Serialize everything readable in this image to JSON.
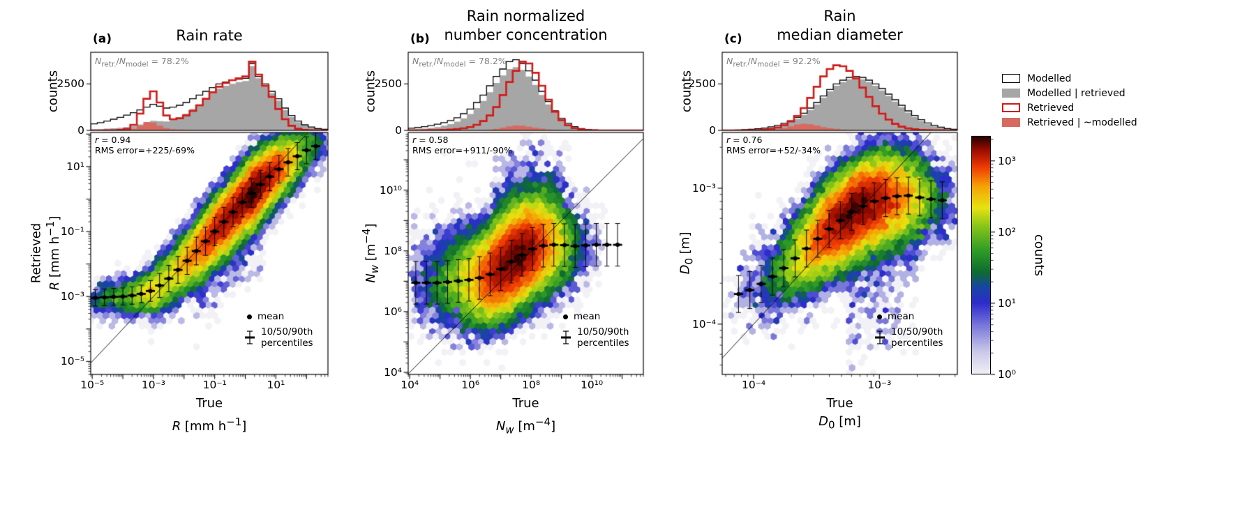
{
  "figure": {
    "background": "#ffffff"
  },
  "legend": {
    "items": [
      {
        "label": "Modelled",
        "swatch": "outline-black"
      },
      {
        "label": "Modelled | retrieved",
        "swatch": "fill-gray"
      },
      {
        "label": "Retrieved",
        "swatch": "outline-red"
      },
      {
        "label": "Retrieved | ~modelled",
        "swatch": "fill-salmon"
      }
    ]
  },
  "colorbar": {
    "label": "counts",
    "ticks": [
      "10⁰",
      "10¹",
      "10²",
      "10³"
    ],
    "tick_logs": [
      0,
      1,
      2,
      3
    ],
    "log_range": [
      0,
      3.35
    ]
  },
  "chart_data": {
    "type": "hexbin+histogram",
    "shared": {
      "counts_label": "counts",
      "true_label": "True"
    },
    "inner_legend": {
      "mean_label": "mean",
      "pct_label": "10/50/90th\npercentiles"
    },
    "colors": {
      "modelled": "#000000",
      "modelled_retrieved": "#a6a6a6",
      "retrieved": "#d11a17",
      "retrieved_not_modelled": "#d66a60",
      "axis": "#000000"
    },
    "colormap_stops": [
      [
        0.0,
        "#f2f1f5"
      ],
      [
        0.1,
        "#c8c7e8"
      ],
      [
        0.2,
        "#7e7cdb"
      ],
      [
        0.3,
        "#2d2ccd"
      ],
      [
        0.37,
        "#1747a0"
      ],
      [
        0.43,
        "#0e6b30"
      ],
      [
        0.52,
        "#2f9b26"
      ],
      [
        0.62,
        "#85c41a"
      ],
      [
        0.7,
        "#e6e310"
      ],
      [
        0.79,
        "#f6a206"
      ],
      [
        0.87,
        "#ef3b04"
      ],
      [
        0.94,
        "#a00d00"
      ],
      [
        1.0,
        "#250000"
      ]
    ],
    "panels": [
      {
        "letter": "(a)",
        "title": "Rain rate",
        "ratio_html": "<i>N</i><sub>retr.</sub>/<i>N</i><sub>model</sub> = 78.2%",
        "r_html": "<i>r</i> = 0.94",
        "rms_text": "RMS error=+225/-69%",
        "xlabel_line2_html": "<i>R</i> [mm h<sup>−1</sup>]",
        "ylabel_line1": "Retrieved",
        "ylabel_line2_html": "<i>R</i> [mm h<sup>−1</sup>]",
        "hist_yticks": [
          0,
          2500
        ],
        "hist_ymax": 4200,
        "x_log_range": [
          -5.05,
          2.7
        ],
        "y_log_range": [
          -5.4,
          2.05
        ],
        "x_ticks": [
          {
            "log": -5,
            "label": "10⁻⁵"
          },
          {
            "log": -3,
            "label": "10⁻³"
          },
          {
            "log": -1,
            "label": "10⁻¹"
          },
          {
            "log": 1,
            "label": "10¹"
          }
        ],
        "y_ticks": [
          {
            "log": 1,
            "label": "10¹"
          },
          {
            "log": -1,
            "label": "10⁻¹"
          },
          {
            "log": -3,
            "label": "10⁻³"
          },
          {
            "log": -5,
            "label": "10⁻⁵"
          }
        ],
        "hist_bins": {
          "n": 36,
          "modelled": [
            350,
            420,
            500,
            600,
            700,
            820,
            950,
            1100,
            1250,
            1400,
            1300,
            1200,
            1250,
            1350,
            1500,
            1700,
            1900,
            2100,
            2300,
            2500,
            2600,
            2700,
            2750,
            2800,
            3600,
            2900,
            2500,
            2100,
            1700,
            1200,
            800,
            500,
            300,
            180,
            100,
            60
          ],
          "modelled_retrieved": [
            60,
            70,
            90,
            110,
            140,
            180,
            240,
            320,
            420,
            520,
            500,
            480,
            560,
            700,
            900,
            1150,
            1400,
            1700,
            2000,
            2250,
            2400,
            2500,
            2600,
            2650,
            3450,
            2800,
            2400,
            2000,
            1600,
            1100,
            720,
            440,
            260,
            150,
            80,
            45
          ],
          "retrieved": [
            0,
            0,
            5,
            10,
            30,
            80,
            300,
            900,
            1700,
            2100,
            1500,
            800,
            600,
            650,
            800,
            1050,
            1350,
            1700,
            2050,
            2350,
            2550,
            2700,
            2800,
            2900,
            3700,
            3000,
            2400,
            1800,
            1150,
            600,
            250,
            90,
            30,
            10,
            5,
            0
          ],
          "retrieved_not_modelled": [
            0,
            0,
            0,
            0,
            0,
            20,
            80,
            250,
            450,
            420,
            250,
            120,
            70,
            50,
            40,
            35,
            30,
            25,
            25,
            20,
            20,
            15,
            15,
            15,
            20,
            15,
            10,
            10,
            5,
            0,
            0,
            0,
            0,
            0,
            0,
            0
          ]
        },
        "mean_curve": {
          "x": [
            -5.05,
            -4.5,
            -4.0,
            -3.5,
            -3.0,
            -2.5,
            -2.0,
            -1.5,
            -1.0,
            -0.5,
            0.0,
            0.5,
            1.0,
            1.5,
            2.0,
            2.7
          ],
          "y": [
            -3.05,
            -3.02,
            -3.0,
            -2.95,
            -2.8,
            -2.45,
            -2.0,
            -1.5,
            -1.0,
            -0.5,
            0.0,
            0.45,
            0.85,
            1.2,
            1.5,
            1.8
          ]
        },
        "sigma_curve": {
          "x": [
            -5.05,
            -3.4,
            -2.6,
            -0.5,
            2.7
          ],
          "s": [
            0.28,
            0.3,
            0.45,
            0.5,
            0.45
          ]
        },
        "bar_mult": 0.9,
        "n_samples": 36000,
        "tails": [
          {
            "prob": 0.05,
            "xmin": -1.8,
            "xmax": 0.6,
            "sigma": 0.9,
            "dir": -1
          }
        ],
        "marker_xs": [
          -4.9,
          -4.6,
          -4.3,
          -4.0,
          -3.7,
          -3.4,
          -3.1,
          -2.8,
          -2.5,
          -2.2,
          -1.9,
          -1.6,
          -1.3,
          -1.0,
          -0.7,
          -0.4,
          -0.1,
          0.2,
          0.5,
          0.8,
          1.1,
          1.4,
          1.7,
          2.0,
          2.3
        ]
      },
      {
        "letter": "(b)",
        "title": "Rain normalized\nnumber concentration",
        "ratio_html": "<i>N</i><sub>retr.</sub>/<i>N</i><sub>model</sub> = 78.2%",
        "r_html": "<i>r</i> = 0.58",
        "rms_text": "RMS error=+911/-90%",
        "xlabel_line2_html": "<i>N<sub>w</sub></i> [m<sup>−4</sup>]",
        "ylabel_line1": "",
        "ylabel_line2_html": "<i>N<sub>w</sub></i> [m<sup>−4</sup>]",
        "hist_yticks": [
          0,
          2500
        ],
        "hist_ymax": 4200,
        "x_log_range": [
          3.95,
          11.7
        ],
        "y_log_range": [
          3.93,
          11.9
        ],
        "x_ticks": [
          {
            "log": 4,
            "label": "10⁴"
          },
          {
            "log": 6,
            "label": "10⁶"
          },
          {
            "log": 8,
            "label": "10⁸"
          },
          {
            "log": 10,
            "label": "10¹⁰"
          }
        ],
        "y_ticks": [
          {
            "log": 10,
            "label": "10¹⁰"
          },
          {
            "log": 8,
            "label": "10⁸"
          },
          {
            "log": 6,
            "label": "10⁶"
          },
          {
            "log": 4,
            "label": "10⁴"
          }
        ],
        "hist_bins": {
          "n": 36,
          "modelled": [
            120,
            150,
            200,
            260,
            330,
            420,
            530,
            680,
            900,
            1150,
            1500,
            1900,
            2400,
            2900,
            3300,
            3700,
            3800,
            3600,
            3200,
            2700,
            2100,
            1550,
            1050,
            650,
            380,
            200,
            100,
            50,
            25,
            10,
            5,
            0,
            0,
            0,
            0,
            0
          ],
          "modelled_retrieved": [
            40,
            60,
            90,
            130,
            180,
            250,
            340,
            470,
            650,
            880,
            1200,
            1580,
            2050,
            2550,
            2950,
            3300,
            3400,
            3250,
            2900,
            2450,
            1900,
            1400,
            950,
            580,
            340,
            180,
            90,
            45,
            20,
            8,
            0,
            0,
            0,
            0,
            0,
            0
          ],
          "retrieved": [
            5,
            8,
            10,
            15,
            20,
            30,
            45,
            70,
            110,
            180,
            300,
            500,
            800,
            1250,
            1900,
            2600,
            3200,
            3700,
            3600,
            3100,
            2400,
            1650,
            1000,
            550,
            270,
            120,
            50,
            20,
            8,
            0,
            0,
            0,
            0,
            0,
            0,
            0
          ],
          "retrieved_not_modelled": [
            0,
            0,
            0,
            0,
            0,
            0,
            0,
            0,
            0,
            0,
            0,
            0,
            40,
            80,
            150,
            220,
            260,
            250,
            200,
            140,
            90,
            50,
            25,
            10,
            0,
            0,
            0,
            0,
            0,
            0,
            0,
            0,
            0,
            0,
            0,
            0
          ]
        },
        "mean_curve": {
          "x": [
            3.95,
            4.5,
            5.0,
            5.5,
            6.0,
            6.5,
            7.0,
            7.5,
            8.0,
            8.5,
            9.0,
            9.5,
            10.0,
            10.5,
            11.0,
            11.7
          ],
          "y": [
            6.95,
            6.95,
            6.95,
            7.0,
            7.05,
            7.15,
            7.4,
            7.75,
            8.05,
            8.2,
            8.2,
            8.15,
            8.2,
            8.2,
            8.2,
            8.2
          ]
        },
        "sigma_curve": {
          "x": [
            3.95,
            11.7
          ],
          "s": [
            0.78,
            0.78
          ]
        },
        "bar_mult": 0.9,
        "n_samples": 36000,
        "tails": [
          {
            "prob": 0.09,
            "xmin": 6.8,
            "xmax": 9.2,
            "sigma": 1.1,
            "dir": 1
          },
          {
            "prob": 0.05,
            "xmin": 4.0,
            "xmax": 6.2,
            "sigma": 1.0,
            "dir": 1
          }
        ],
        "marker_xs": [
          4.2,
          4.55,
          4.9,
          5.25,
          5.6,
          5.95,
          6.3,
          6.65,
          7.0,
          7.35,
          7.7,
          8.05,
          8.4,
          8.75,
          9.1,
          9.45,
          9.8,
          10.15,
          10.5,
          10.85
        ]
      },
      {
        "letter": "(c)",
        "title": "Rain\nmedian diameter",
        "ratio_html": "<i>N</i><sub>retr.</sub>/<i>N</i><sub>model</sub> = 92.2%",
        "r_html": "<i>r</i> = 0.76",
        "rms_text": "RMS error=+52/-34%",
        "xlabel_line2_html": "<i>D</i><sub>0</sub> [m]",
        "ylabel_line1": "",
        "ylabel_line2_html": "<i>D</i><sub>0</sub> [m]",
        "hist_yticks": [
          0,
          2500
        ],
        "hist_ymax": 4200,
        "x_log_range": [
          -4.25,
          -2.38
        ],
        "y_log_range": [
          -4.37,
          -2.59
        ],
        "x_ticks": [
          {
            "log": -4,
            "label": "10⁻⁴"
          },
          {
            "log": -3,
            "label": "10⁻³"
          }
        ],
        "y_ticks": [
          {
            "log": -3,
            "label": "10⁻³"
          },
          {
            "log": -4,
            "label": "10⁻⁴"
          }
        ],
        "hist_bins": {
          "n": 36,
          "modelled": [
            10,
            15,
            25,
            40,
            60,
            90,
            130,
            190,
            270,
            380,
            520,
            700,
            920,
            1200,
            1500,
            1850,
            2200,
            2500,
            2700,
            2850,
            2900,
            2850,
            2700,
            2500,
            2250,
            1950,
            1650,
            1350,
            1050,
            800,
            580,
            400,
            270,
            170,
            100,
            60
          ],
          "modelled_retrieved": [
            5,
            8,
            14,
            25,
            40,
            65,
            100,
            150,
            220,
            320,
            450,
            620,
            830,
            1100,
            1400,
            1750,
            2100,
            2400,
            2600,
            2750,
            2800,
            2750,
            2600,
            2400,
            2150,
            1850,
            1550,
            1250,
            960,
            720,
            510,
            340,
            220,
            130,
            75,
            40
          ],
          "retrieved": [
            0,
            0,
            0,
            5,
            10,
            20,
            40,
            80,
            150,
            280,
            480,
            780,
            1200,
            1750,
            2350,
            2900,
            3300,
            3500,
            3450,
            3200,
            2800,
            2300,
            1800,
            1300,
            900,
            580,
            350,
            200,
            110,
            60,
            30,
            15,
            8,
            4,
            0,
            0
          ],
          "retrieved_not_modelled": [
            0,
            0,
            0,
            0,
            0,
            0,
            0,
            0,
            60,
            120,
            220,
            320,
            360,
            330,
            260,
            180,
            120,
            80,
            50,
            30,
            20,
            10,
            0,
            0,
            0,
            0,
            0,
            0,
            0,
            0,
            0,
            0,
            0,
            0,
            0,
            0
          ]
        },
        "mean_curve": {
          "x": [
            -4.25,
            -4.0,
            -3.8,
            -3.6,
            -3.4,
            -3.2,
            -3.0,
            -2.8,
            -2.6,
            -2.38
          ],
          "y": [
            -3.82,
            -3.74,
            -3.62,
            -3.46,
            -3.3,
            -3.16,
            -3.08,
            -3.05,
            -3.08,
            -3.1
          ]
        },
        "sigma_curve": {
          "x": [
            -4.25,
            -2.38
          ],
          "s": [
            0.17,
            0.17
          ]
        },
        "bar_mult": 0.8,
        "n_samples": 30000,
        "tails": [
          {
            "prob": 0.05,
            "xmin": -3.25,
            "xmax": -2.7,
            "sigma": 0.45,
            "dir": -1
          }
        ],
        "marker_xs": [
          -4.12,
          -4.03,
          -3.94,
          -3.85,
          -3.76,
          -3.67,
          -3.58,
          -3.49,
          -3.4,
          -3.31,
          -3.22,
          -3.13,
          -3.04,
          -2.95,
          -2.86,
          -2.77,
          -2.68,
          -2.59,
          -2.5
        ]
      }
    ]
  }
}
